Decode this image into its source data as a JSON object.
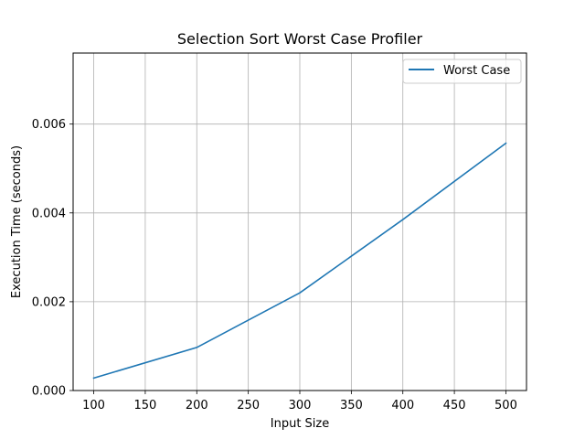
{
  "chart_data": {
    "type": "line",
    "title": "Selection Sort Worst Case Profiler",
    "xlabel": "Input Size",
    "ylabel": "Execution Time (seconds)",
    "xlim": [
      80,
      520
    ],
    "ylim": [
      0.0,
      0.0076
    ],
    "xticks": [
      100,
      150,
      200,
      250,
      300,
      350,
      400,
      450,
      500
    ],
    "xtick_labels": [
      "100",
      "150",
      "200",
      "250",
      "300",
      "350",
      "400",
      "450",
      "500"
    ],
    "yticks": [
      0.0,
      0.002,
      0.004,
      0.006
    ],
    "ytick_labels": [
      "0.000",
      "0.002",
      "0.004",
      "0.006"
    ],
    "grid": true,
    "legend_position": "top-right",
    "series": [
      {
        "name": "Worst Case",
        "color": "#1f77b4",
        "x": [
          100,
          200,
          300,
          400,
          500
        ],
        "values": [
          0.00028,
          0.00097,
          0.0022,
          0.00385,
          0.00557
        ]
      }
    ]
  }
}
